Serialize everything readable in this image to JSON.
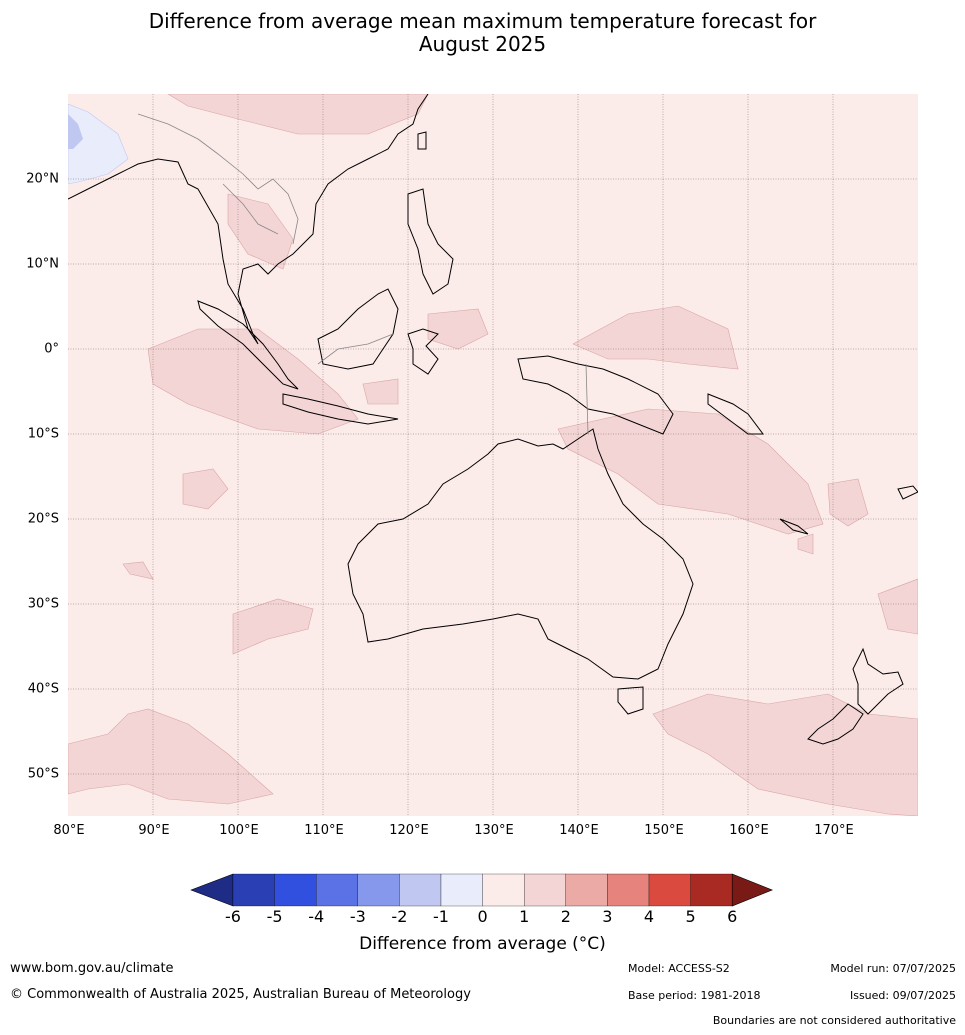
{
  "title_line1": "Difference from average mean maximum temperature forecast for",
  "title_line2": "August 2025",
  "lat_labels": [
    "20°N",
    "10°N",
    "0°",
    "10°S",
    "20°S",
    "30°S",
    "40°S",
    "50°S"
  ],
  "lon_labels": [
    "80°E",
    "90°E",
    "100°E",
    "110°E",
    "120°E",
    "130°E",
    "140°E",
    "150°E",
    "160°E",
    "170°E"
  ],
  "colorbar": {
    "ticks": [
      "-6",
      "-5",
      "-4",
      "-3",
      "-2",
      "-1",
      "0",
      "1",
      "2",
      "3",
      "4",
      "5",
      "6"
    ],
    "colors": [
      "#1e2c85",
      "#2a3fb3",
      "#3250e0",
      "#5a72e6",
      "#8598ec",
      "#c0c8f2",
      "#e8ecfb",
      "#fbebe9",
      "#f4d5d5",
      "#ebaaa5",
      "#e5837c",
      "#db4a3e",
      "#a92a22",
      "#7a1a17"
    ],
    "label": "Difference from average (°C)"
  },
  "footer": {
    "site": "www.bom.gov.au/climate",
    "copyright": "© Commonwealth of Australia 2025, Australian Bureau of Meteorology",
    "model": "Model: ACCESS-S2",
    "base_period": "Base period: 1981-2018",
    "model_run": "Model run: 07/07/2025",
    "issued": "Issued: 09/07/2025",
    "disclaimer": "Boundaries are not considered authoritative"
  }
}
